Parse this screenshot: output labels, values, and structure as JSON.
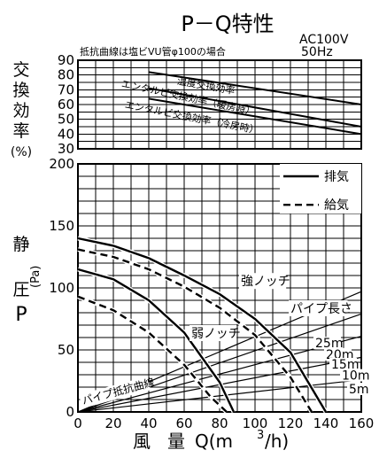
{
  "header": {
    "title": "P－Q特性",
    "note": "抵抗曲線は塩ビVU管φ100の場合",
    "power": "AC100V",
    "freq": "50Hz"
  },
  "chart_data": [
    {
      "type": "line",
      "title": "",
      "ylabel": "交換効率(%)",
      "ylabel_chars": [
        "交",
        "換",
        "効",
        "率"
      ],
      "ylabel_unit": "(%)",
      "xlim": [
        0,
        160
      ],
      "ylim": [
        30,
        90
      ],
      "yticks": [
        30,
        40,
        50,
        60,
        70,
        80,
        90
      ],
      "grid": true,
      "series": [
        {
          "name": "温度交換効率",
          "x": [
            40,
            160
          ],
          "y": [
            82,
            60
          ]
        },
        {
          "name": "エンタルピ交換効率（暖房時）",
          "x": [
            40,
            160
          ],
          "y": [
            71,
            45
          ]
        },
        {
          "name": "エンタルピ交換効率（冷房時）",
          "x": [
            40,
            160
          ],
          "y": [
            64,
            40
          ]
        }
      ]
    },
    {
      "type": "line",
      "title": "",
      "xlabel": "風 量 Q(m³/h)",
      "xlabel_parts": [
        "風",
        "量",
        "Q(m",
        "3",
        "/h)"
      ],
      "ylabel": "静圧P(Pa)",
      "ylabel_parts": [
        "静",
        "圧",
        "(Pa)",
        "P"
      ],
      "xlim": [
        0,
        160
      ],
      "ylim": [
        0,
        200
      ],
      "xticks": [
        0,
        20,
        40,
        60,
        80,
        100,
        120,
        140,
        160
      ],
      "yticks_labeled": [
        0,
        50,
        100,
        150,
        200
      ],
      "grid": true,
      "legend": {
        "position": "top-right",
        "entries": [
          {
            "label": "排気",
            "style": "solid"
          },
          {
            "label": "給気",
            "style": "dashed"
          }
        ]
      },
      "annotations": {
        "strong": "強ノッチ",
        "weak": "弱ノッチ",
        "pipe_length": "パイプ長さ",
        "resistance": "パイプ抵抗曲線"
      },
      "series": [
        {
          "name": "強ノッチ 排気",
          "style": "solid",
          "x": [
            0,
            20,
            40,
            60,
            80,
            100,
            120,
            140
          ],
          "y": [
            140,
            134,
            124,
            110,
            95,
            75,
            48,
            0
          ]
        },
        {
          "name": "強ノッチ 給気",
          "style": "dashed",
          "x": [
            0,
            20,
            40,
            60,
            80,
            100,
            120,
            132
          ],
          "y": [
            131,
            125,
            115,
            101,
            84,
            62,
            28,
            0
          ]
        },
        {
          "name": "弱ノッチ 排気",
          "style": "solid",
          "x": [
            0,
            20,
            40,
            60,
            80,
            88
          ],
          "y": [
            115,
            107,
            90,
            64,
            24,
            0
          ]
        },
        {
          "name": "弱ノッチ 給気",
          "style": "dashed",
          "x": [
            0,
            20,
            40,
            60,
            75,
            84
          ],
          "y": [
            93,
            82,
            64,
            38,
            12,
            0
          ]
        }
      ],
      "pipe_lines": [
        {
          "label": "25m",
          "x": [
            0,
            160
          ],
          "y": [
            0,
            97
          ]
        },
        {
          "label": "20m",
          "x": [
            0,
            160
          ],
          "y": [
            0,
            79
          ]
        },
        {
          "label": "15m",
          "x": [
            0,
            160
          ],
          "y": [
            0,
            61
          ]
        },
        {
          "label": "10m",
          "x": [
            0,
            160
          ],
          "y": [
            0,
            44
          ]
        },
        {
          "label": "5m",
          "x": [
            0,
            160
          ],
          "y": [
            0,
            26
          ]
        }
      ]
    }
  ]
}
